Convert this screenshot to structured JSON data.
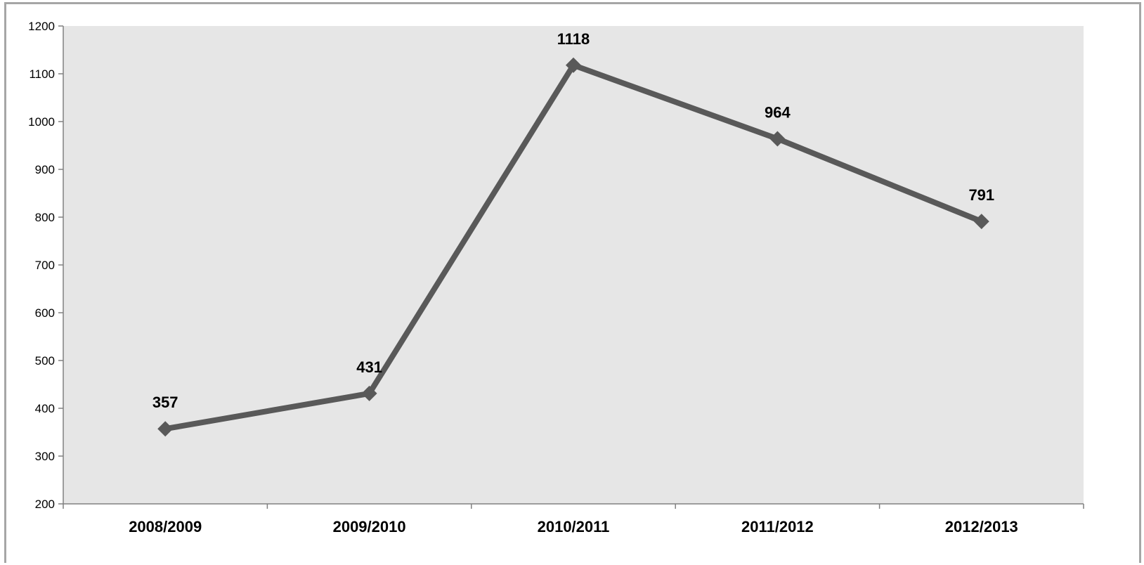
{
  "chart_data": {
    "type": "line",
    "title": "",
    "xlabel": "",
    "ylabel": "",
    "categories": [
      "2008/2009",
      "2009/2010",
      "2010/2011",
      "2011/2012",
      "2012/2013"
    ],
    "series": [
      {
        "values": [
          357,
          431,
          1118,
          964,
          791
        ],
        "data_labels": [
          "357",
          "431",
          "1118",
          "964",
          "791"
        ]
      }
    ],
    "ylim": [
      200,
      1200
    ],
    "ytick_step": 100,
    "yticks": [
      "200",
      "300",
      "400",
      "500",
      "600",
      "700",
      "800",
      "900",
      "1000",
      "1100",
      "1200"
    ],
    "grid": false,
    "legend": "none",
    "marker": "diamond",
    "colors": {
      "series_line": "#595959",
      "plot_background": "#e6e6e6",
      "axis": "#808080",
      "frame_border": "#a6a6a6"
    }
  }
}
